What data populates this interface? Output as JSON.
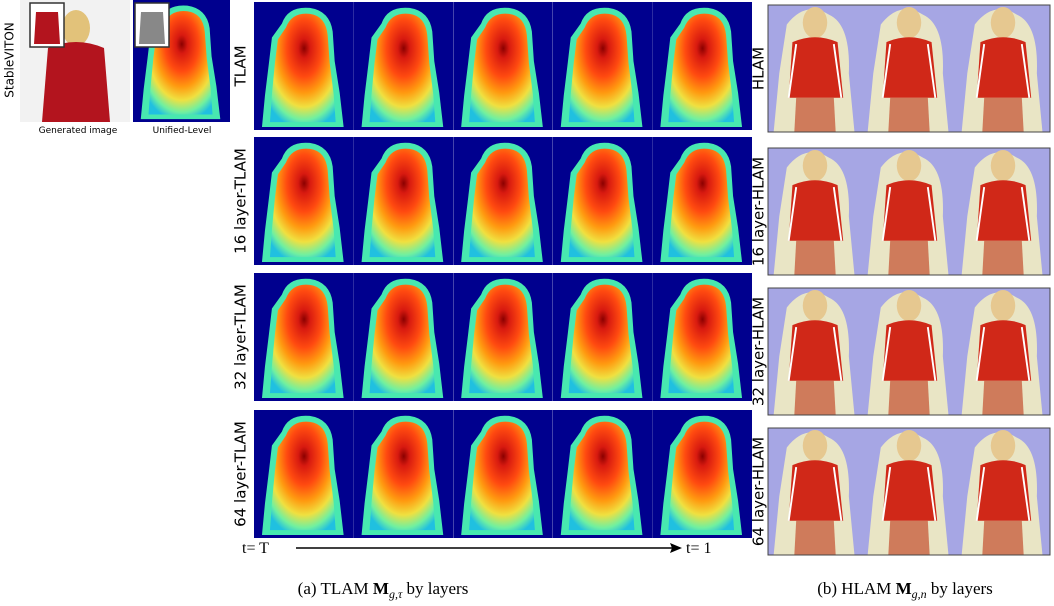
{
  "left_panel": {
    "method": "StableVITON",
    "images": [
      "Generated image",
      "Unified-Level"
    ]
  },
  "tlam": {
    "rows": [
      "TLAM",
      "16 layer-TLAM",
      "32 layer-TLAM",
      "64 layer-TLAM"
    ],
    "axis": {
      "start": "t= T",
      "end": "t= 1"
    },
    "caption": {
      "prefix": "(a) TLAM",
      "symbol": "M",
      "subscript": "g,τ",
      "suffix": "by layers"
    }
  },
  "hlam": {
    "rows": [
      "HLAM",
      "16 layer-HLAM",
      "32 layer-HLAM",
      "64 layer-HLAM"
    ],
    "caption": {
      "prefix": "(b) HLAM",
      "symbol": "M",
      "subscript": "g,n",
      "suffix": "by layers"
    }
  }
}
